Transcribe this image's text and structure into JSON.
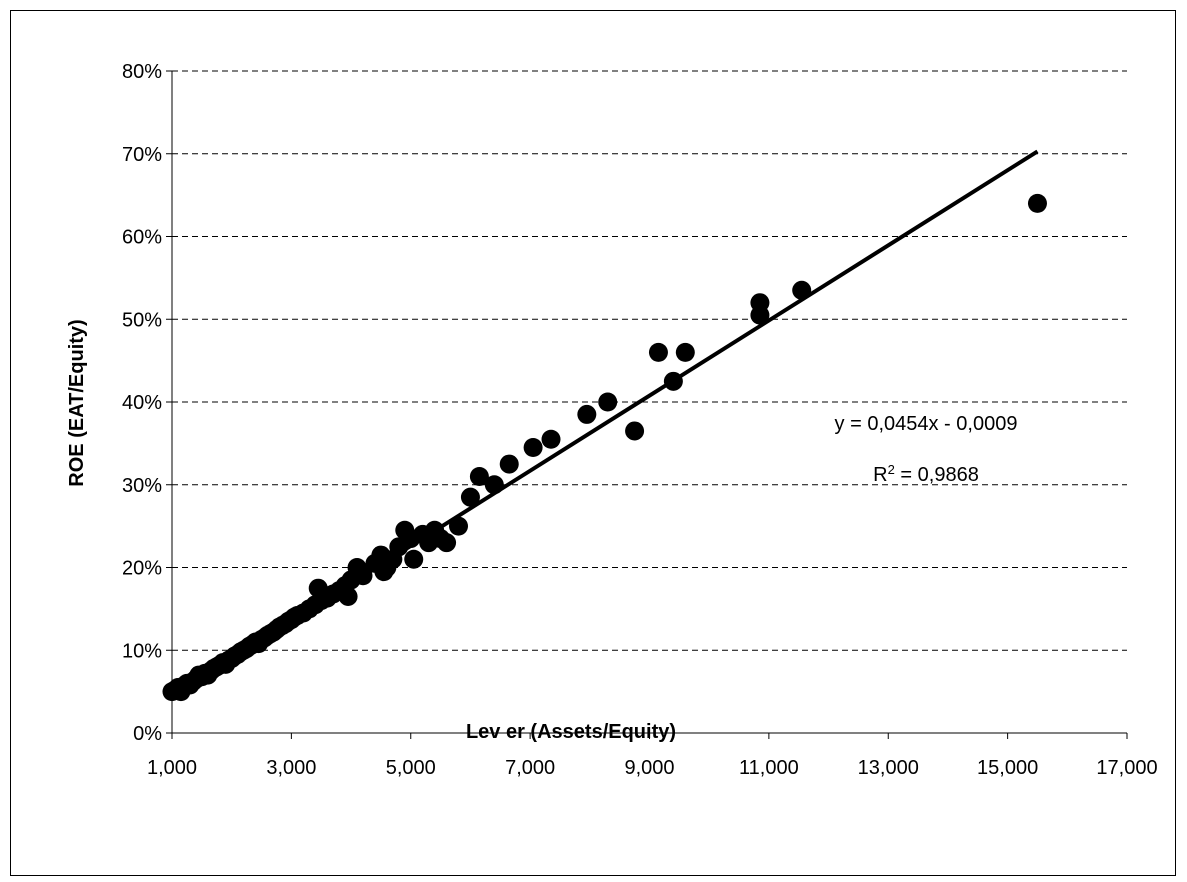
{
  "chart_data": {
    "type": "scatter",
    "title": "",
    "xlabel": "Lev er (Assets/Equity)",
    "ylabel": "ROE (EAT/Equity)",
    "xlim": [
      1000,
      17000
    ],
    "ylim": [
      0,
      0.8
    ],
    "x_ticks": [
      1000,
      3000,
      5000,
      7000,
      9000,
      11000,
      13000,
      15000,
      17000
    ],
    "x_tick_labels": [
      "1,000",
      "3,000",
      "5,000",
      "7,000",
      "9,000",
      "11,000",
      "13,000",
      "15,000",
      "17,000"
    ],
    "y_ticks": [
      0,
      0.1,
      0.2,
      0.3,
      0.4,
      0.5,
      0.6,
      0.7,
      0.8
    ],
    "y_tick_labels": [
      "0%",
      "10%",
      "20%",
      "30%",
      "40%",
      "50%",
      "60%",
      "70%",
      "80%"
    ],
    "grid": "horizontal dashed",
    "legend": "none",
    "series": [
      {
        "points": [
          [
            1000,
            0.05
          ],
          [
            1050,
            0.052
          ],
          [
            1100,
            0.055
          ],
          [
            1150,
            0.05
          ],
          [
            1200,
            0.057
          ],
          [
            1250,
            0.06
          ],
          [
            1300,
            0.058
          ],
          [
            1350,
            0.062
          ],
          [
            1400,
            0.065
          ],
          [
            1450,
            0.07
          ],
          [
            1500,
            0.068
          ],
          [
            1550,
            0.072
          ],
          [
            1600,
            0.07
          ],
          [
            1650,
            0.075
          ],
          [
            1700,
            0.078
          ],
          [
            1750,
            0.08
          ],
          [
            1800,
            0.082
          ],
          [
            1850,
            0.085
          ],
          [
            1900,
            0.083
          ],
          [
            1950,
            0.088
          ],
          [
            2000,
            0.09
          ],
          [
            2050,
            0.093
          ],
          [
            2100,
            0.095
          ],
          [
            2150,
            0.098
          ],
          [
            2200,
            0.1
          ],
          [
            2250,
            0.102
          ],
          [
            2300,
            0.105
          ],
          [
            2350,
            0.107
          ],
          [
            2400,
            0.11
          ],
          [
            2450,
            0.108
          ],
          [
            2500,
            0.113
          ],
          [
            2550,
            0.115
          ],
          [
            2600,
            0.118
          ],
          [
            2650,
            0.12
          ],
          [
            2700,
            0.122
          ],
          [
            2750,
            0.125
          ],
          [
            2800,
            0.128
          ],
          [
            2850,
            0.13
          ],
          [
            2900,
            0.132
          ],
          [
            2950,
            0.135
          ],
          [
            3000,
            0.137
          ],
          [
            3050,
            0.14
          ],
          [
            3100,
            0.142
          ],
          [
            3200,
            0.145
          ],
          [
            3300,
            0.15
          ],
          [
            3400,
            0.155
          ],
          [
            3450,
            0.175
          ],
          [
            3500,
            0.16
          ],
          [
            3550,
            0.165
          ],
          [
            3600,
            0.163
          ],
          [
            3700,
            0.168
          ],
          [
            3800,
            0.172
          ],
          [
            3900,
            0.178
          ],
          [
            3950,
            0.165
          ],
          [
            4000,
            0.185
          ],
          [
            4100,
            0.2
          ],
          [
            4200,
            0.19
          ],
          [
            4400,
            0.205
          ],
          [
            4500,
            0.215
          ],
          [
            4550,
            0.195
          ],
          [
            4600,
            0.2
          ],
          [
            4700,
            0.21
          ],
          [
            4800,
            0.225
          ],
          [
            4900,
            0.245
          ],
          [
            5000,
            0.235
          ],
          [
            5050,
            0.21
          ],
          [
            5200,
            0.24
          ],
          [
            5300,
            0.23
          ],
          [
            5400,
            0.245
          ],
          [
            5500,
            0.235
          ],
          [
            5600,
            0.23
          ],
          [
            5800,
            0.25
          ],
          [
            6000,
            0.285
          ],
          [
            6150,
            0.31
          ],
          [
            6400,
            0.3
          ],
          [
            6650,
            0.325
          ],
          [
            7050,
            0.345
          ],
          [
            7350,
            0.355
          ],
          [
            7950,
            0.385
          ],
          [
            8300,
            0.4
          ],
          [
            8750,
            0.365
          ],
          [
            9150,
            0.46
          ],
          [
            9400,
            0.425
          ],
          [
            9600,
            0.46
          ],
          [
            10850,
            0.505
          ],
          [
            10850,
            0.52
          ],
          [
            11550,
            0.535
          ],
          [
            15500,
            0.64
          ]
        ]
      }
    ],
    "trendline": {
      "type": "linear",
      "x_range": [
        1000,
        15500
      ],
      "equation": "y = 0,0454x - 0,0009",
      "r2_prefix": "R",
      "r2_sup": "2",
      "r2_suffix": " = 0,9868"
    }
  }
}
